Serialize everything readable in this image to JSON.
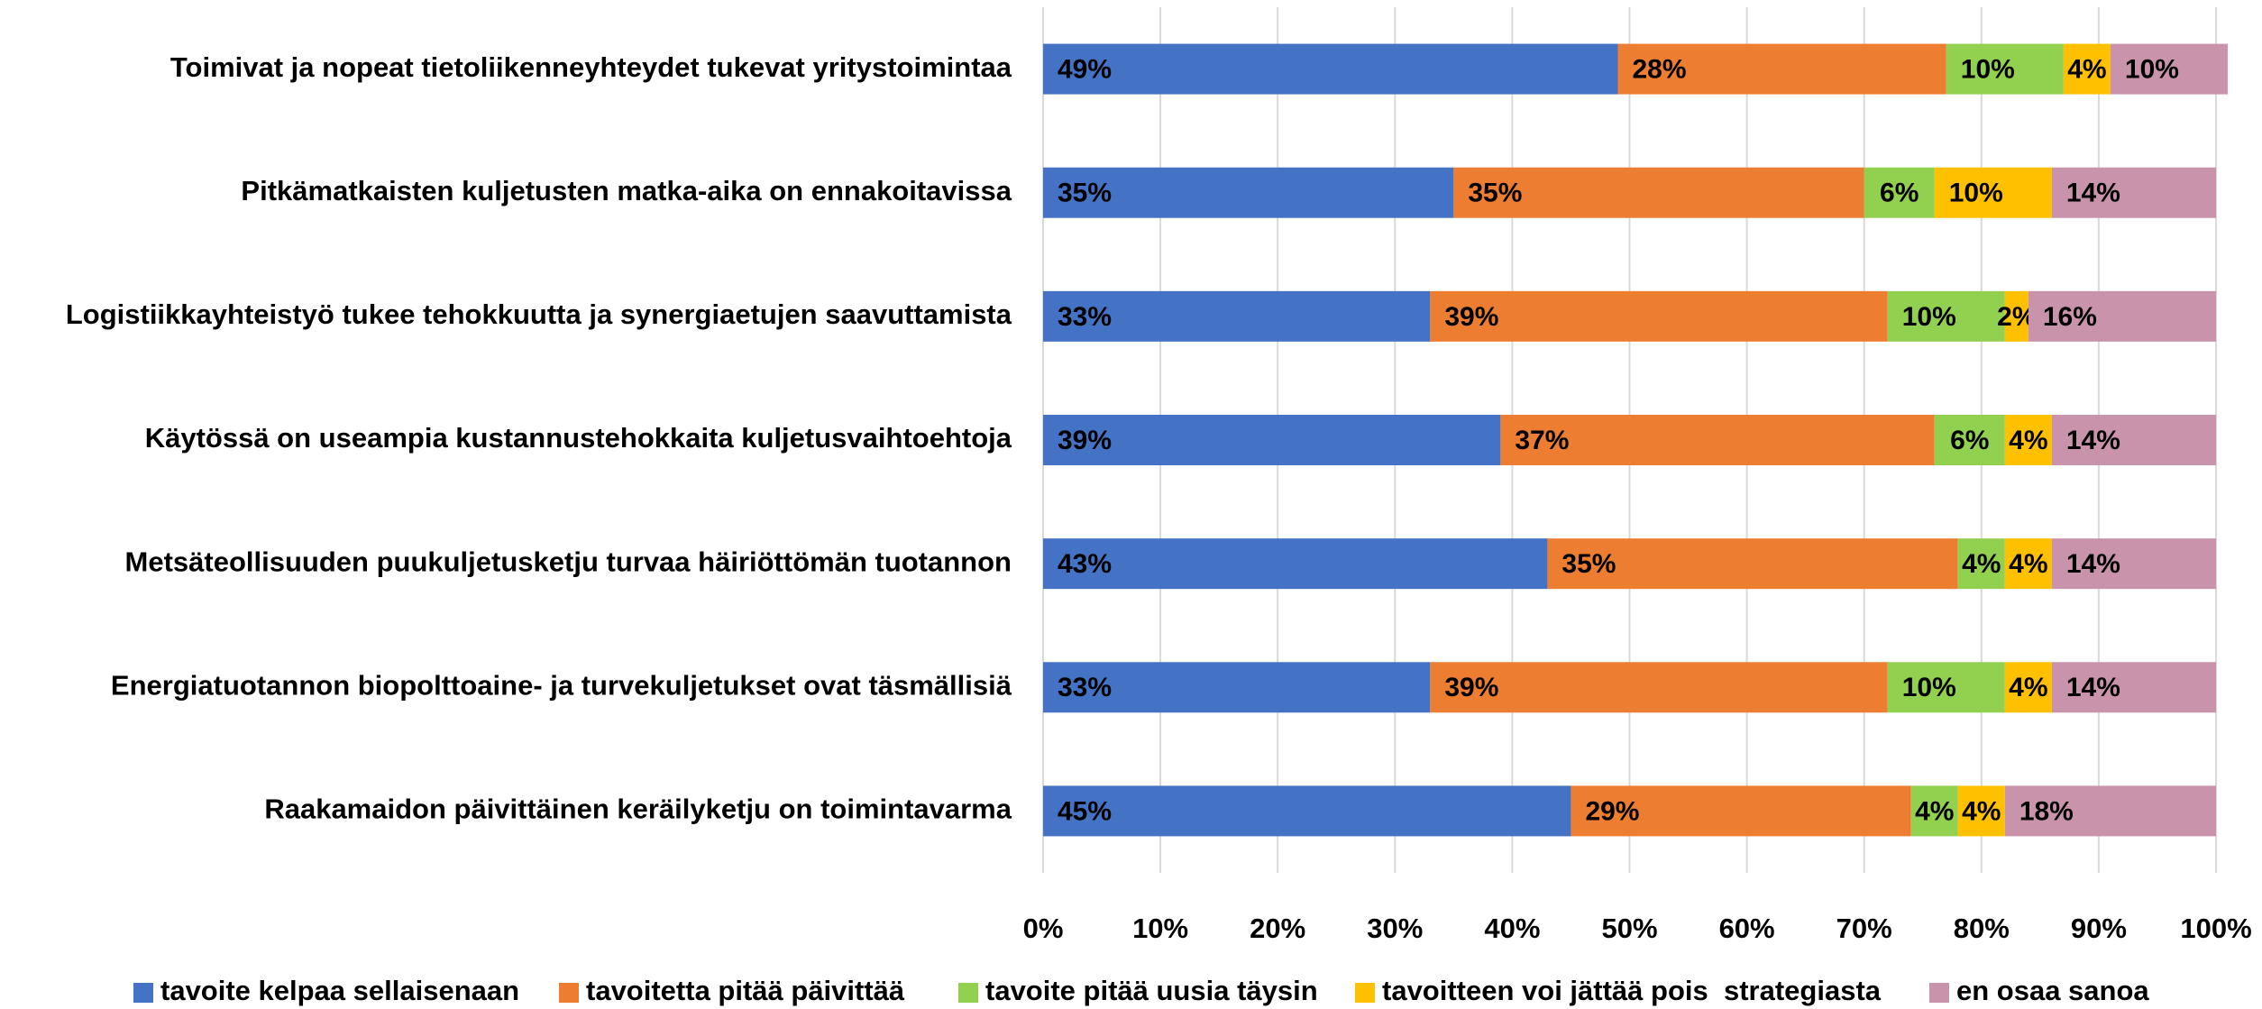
{
  "chart_data": {
    "type": "stacked_barh",
    "categories": [
      "Toimivat ja nopeat tietoliikenneyhteydet tukevat yritystoimintaa",
      "Pitkämatkaisten kuljetusten matka-aika on ennakoitavissa",
      "Logistiikkayhteistyö tukee tehokkuutta ja synergiaetujen saavuttamista",
      "Käytössä on useampia kustannustehokkaita kuljetusvaihtoehtoja",
      "Metsäteollisuuden puukuljetusketju turvaa häiriöttömän tuotannon",
      "Energiatuotannon biopolttoaine- ja turvekuljetukset ovat täsmällisiä",
      "Raakamaidon päivittäinen keräilyketju on toimintavarma"
    ],
    "series": [
      {
        "name": "tavoite kelpaa sellaisenaan",
        "color": "#4472c4",
        "values": [
          49,
          35,
          33,
          39,
          43,
          33,
          45
        ],
        "value_labels": [
          "49%",
          "35%",
          "33%",
          "39%",
          "43%",
          "33%",
          "45%"
        ]
      },
      {
        "name": "tavoitetta pitää päivittää",
        "color": "#ed7d31",
        "values": [
          28,
          35,
          39,
          37,
          35,
          39,
          29
        ],
        "value_labels": [
          "28%",
          "35%",
          "39%",
          "37%",
          "35%",
          "39%",
          "29%"
        ]
      },
      {
        "name": "tavoite pitää uusia täysin",
        "color": "#92d050",
        "values": [
          10,
          6,
          10,
          6,
          4,
          10,
          4
        ],
        "value_labels": [
          "10%",
          "6%",
          "10%",
          "6%",
          "4%",
          "10%",
          "4%"
        ]
      },
      {
        "name": "tavoitteen voi jättää pois  strategiasta",
        "color": "#ffc000",
        "values": [
          4,
          10,
          2,
          4,
          4,
          4,
          4
        ],
        "value_labels": [
          "4%",
          "10%",
          "2%",
          "4%",
          "4%",
          "4%",
          "4%"
        ]
      },
      {
        "name": "en osaa sanoa",
        "color": "#c994ab",
        "values": [
          10,
          14,
          16,
          14,
          14,
          14,
          18
        ],
        "value_labels": [
          "10%",
          "14%",
          "16%",
          "14%",
          "14%",
          "14%",
          "18%"
        ]
      }
    ],
    "xlim": [
      0,
      100
    ],
    "xticks": [
      {
        "value": 0,
        "label": "0%"
      },
      {
        "value": 10,
        "label": "10%"
      },
      {
        "value": 20,
        "label": "20%"
      },
      {
        "value": 30,
        "label": "30%"
      },
      {
        "value": 40,
        "label": "40%"
      },
      {
        "value": 50,
        "label": "50%"
      },
      {
        "value": 60,
        "label": "60%"
      },
      {
        "value": 70,
        "label": "70%"
      },
      {
        "value": 80,
        "label": "80%"
      },
      {
        "value": 90,
        "label": "90%"
      },
      {
        "value": 100,
        "label": "100%"
      }
    ],
    "grid": true,
    "legend": "bottom"
  }
}
